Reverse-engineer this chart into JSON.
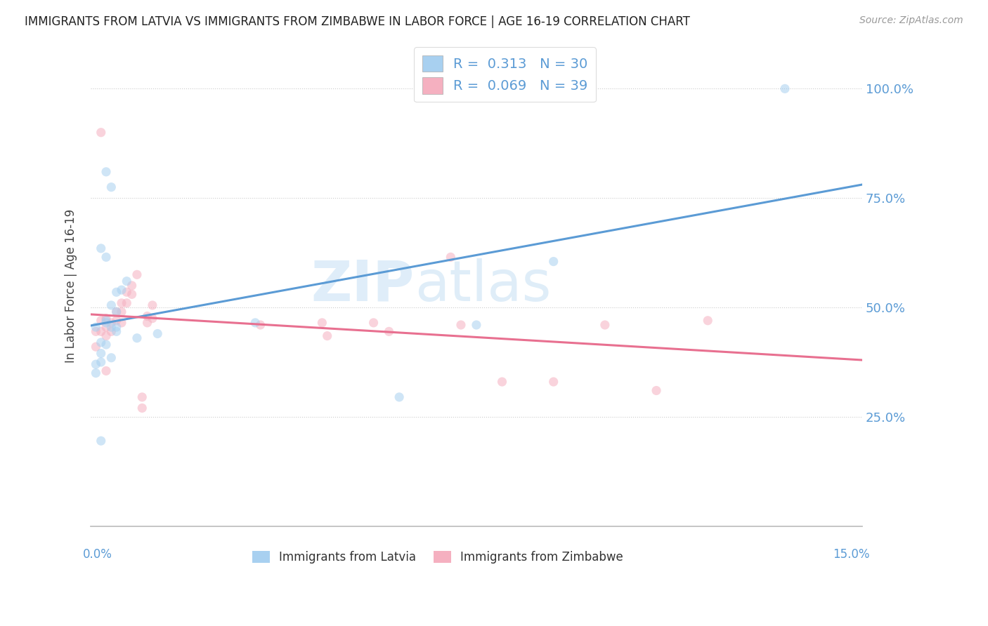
{
  "title": "IMMIGRANTS FROM LATVIA VS IMMIGRANTS FROM ZIMBABWE IN LABOR FORCE | AGE 16-19 CORRELATION CHART",
  "source": "Source: ZipAtlas.com",
  "ylabel": "In Labor Force | Age 16-19",
  "xlim": [
    0.0,
    0.15
  ],
  "ylim": [
    0.0,
    1.1
  ],
  "legend_R1": "0.313",
  "legend_N1": "30",
  "legend_R2": "0.069",
  "legend_N2": "39",
  "color_latvia": "#A8D0F0",
  "color_zimbabwe": "#F5B0C0",
  "color_trend_latvia": "#5B9BD5",
  "color_trend_zimbabwe": "#E87090",
  "watermark_zip": "ZIP",
  "watermark_atlas": "atlas",
  "latvia_x": [
    0.002,
    0.009,
    0.013,
    0.003,
    0.002,
    0.001,
    0.002,
    0.002,
    0.003,
    0.003,
    0.004,
    0.005,
    0.005,
    0.004,
    0.003,
    0.004,
    0.006,
    0.007,
    0.005,
    0.003,
    0.004,
    0.005,
    0.032,
    0.06,
    0.075,
    0.09,
    0.001,
    0.002,
    0.001,
    0.135
  ],
  "latvia_y": [
    0.395,
    0.43,
    0.44,
    0.615,
    0.635,
    0.455,
    0.42,
    0.375,
    0.47,
    0.465,
    0.505,
    0.535,
    0.49,
    0.455,
    0.415,
    0.385,
    0.54,
    0.56,
    0.455,
    0.81,
    0.775,
    0.445,
    0.465,
    0.295,
    0.46,
    0.605,
    0.37,
    0.195,
    0.35,
    1.0
  ],
  "zimbabwe_x": [
    0.001,
    0.001,
    0.002,
    0.002,
    0.003,
    0.003,
    0.003,
    0.004,
    0.004,
    0.005,
    0.005,
    0.006,
    0.006,
    0.006,
    0.007,
    0.007,
    0.008,
    0.008,
    0.009,
    0.01,
    0.01,
    0.011,
    0.011,
    0.012,
    0.012,
    0.002,
    0.003,
    0.033,
    0.045,
    0.046,
    0.055,
    0.058,
    0.07,
    0.072,
    0.08,
    0.09,
    0.1,
    0.11,
    0.12
  ],
  "zimbabwe_y": [
    0.445,
    0.41,
    0.47,
    0.445,
    0.475,
    0.455,
    0.435,
    0.465,
    0.445,
    0.49,
    0.47,
    0.51,
    0.49,
    0.465,
    0.535,
    0.51,
    0.55,
    0.53,
    0.575,
    0.295,
    0.27,
    0.48,
    0.465,
    0.505,
    0.475,
    0.9,
    0.355,
    0.46,
    0.465,
    0.435,
    0.465,
    0.445,
    0.615,
    0.46,
    0.33,
    0.33,
    0.46,
    0.31,
    0.47
  ],
  "scatter_size": 90,
  "scatter_alpha": 0.55
}
